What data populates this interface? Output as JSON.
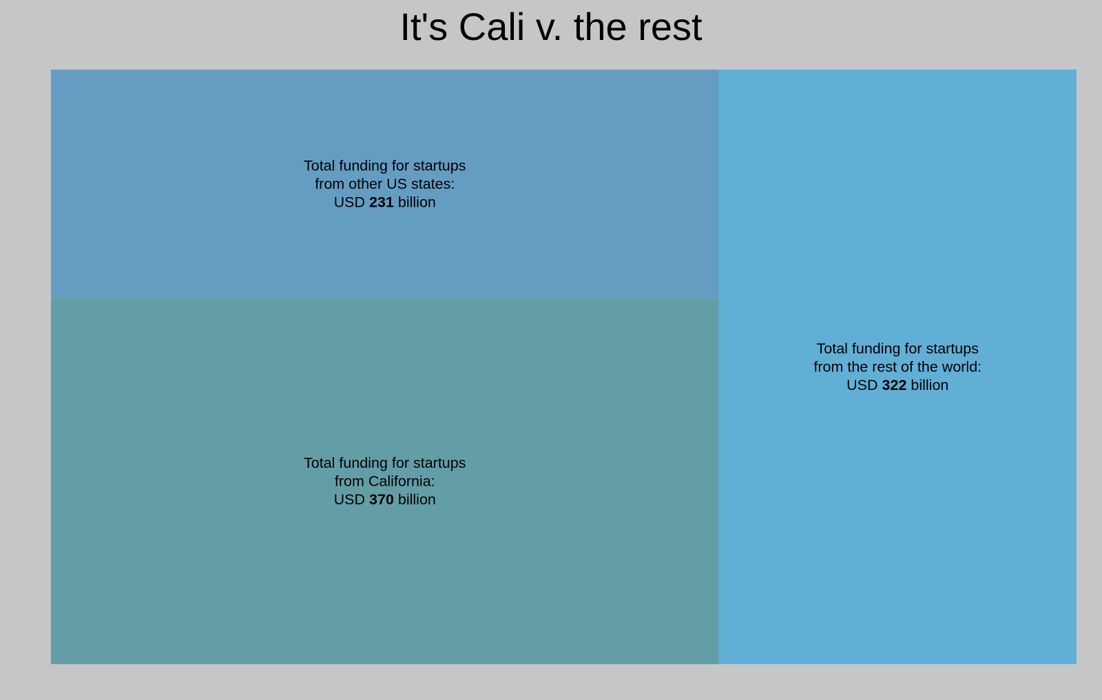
{
  "chart_data": {
    "type": "treemap",
    "title": "It's Cali v. the rest",
    "unit": "USD billion",
    "tiles": [
      {
        "lines": [
          "Total funding for startups",
          "from other US states:"
        ],
        "value_prefix": "USD ",
        "value": 231,
        "value_suffix": " billion",
        "color": "#659dc2"
      },
      {
        "lines": [
          "Total funding for startups",
          "from California:"
        ],
        "value_prefix": "USD ",
        "value": 370,
        "value_suffix": " billion",
        "color": "#639ea7"
      },
      {
        "lines": [
          "Total funding for startups",
          "from the rest of the world:"
        ],
        "value_prefix": "USD ",
        "value": 322,
        "value_suffix": " billion",
        "color": "#62afd6"
      }
    ]
  }
}
